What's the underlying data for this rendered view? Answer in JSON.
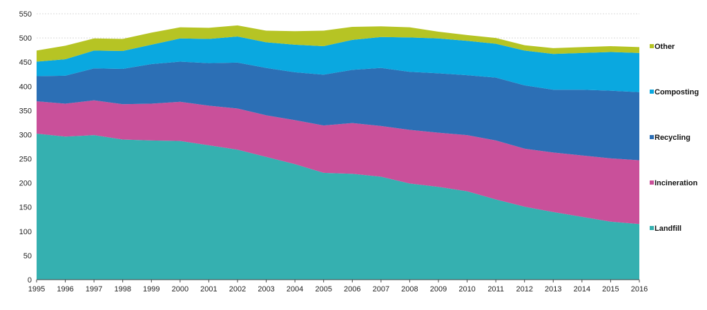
{
  "chart_data": {
    "type": "area",
    "stacked": true,
    "x": [
      "1995",
      "1996",
      "1997",
      "1998",
      "1999",
      "2000",
      "2001",
      "2002",
      "2003",
      "2004",
      "2005",
      "2006",
      "2007",
      "2008",
      "2009",
      "2010",
      "2011",
      "2012",
      "2013",
      "2014",
      "2015",
      "2016"
    ],
    "ylim": [
      0,
      550
    ],
    "yticks": [
      0,
      50,
      100,
      150,
      200,
      250,
      300,
      350,
      400,
      450,
      500,
      550
    ],
    "grid": true,
    "legend_position": "right",
    "series": [
      {
        "name": "Landfill",
        "color": "#35b0b0",
        "values": [
          302,
          296,
          299,
          290,
          288,
          287,
          278,
          269,
          254,
          239,
          221,
          219,
          213,
          199,
          192,
          183,
          166,
          151,
          140,
          130,
          120,
          115
        ]
      },
      {
        "name": "Incineration",
        "color": "#c9509a",
        "values": [
          67,
          68,
          72,
          73,
          76,
          81,
          82,
          85,
          86,
          91,
          98,
          105,
          105,
          111,
          112,
          116,
          122,
          120,
          123,
          127,
          131,
          132
        ]
      },
      {
        "name": "Recycling",
        "color": "#2c6fb5",
        "values": [
          52,
          58,
          66,
          73,
          82,
          83,
          88,
          95,
          98,
          99,
          105,
          110,
          120,
          120,
          123,
          124,
          130,
          131,
          130,
          136,
          140,
          141
        ]
      },
      {
        "name": "Composting",
        "color": "#0aa8e0",
        "values": [
          30,
          34,
          37,
          37,
          40,
          48,
          50,
          54,
          53,
          57,
          59,
          62,
          64,
          71,
          72,
          71,
          70,
          72,
          74,
          76,
          80,
          81
        ]
      },
      {
        "name": "Other",
        "color": "#b6c424",
        "values": [
          23,
          28,
          25,
          25,
          25,
          23,
          23,
          23,
          24,
          28,
          32,
          27,
          22,
          21,
          14,
          12,
          12,
          11,
          12,
          12,
          12,
          12
        ]
      }
    ]
  }
}
